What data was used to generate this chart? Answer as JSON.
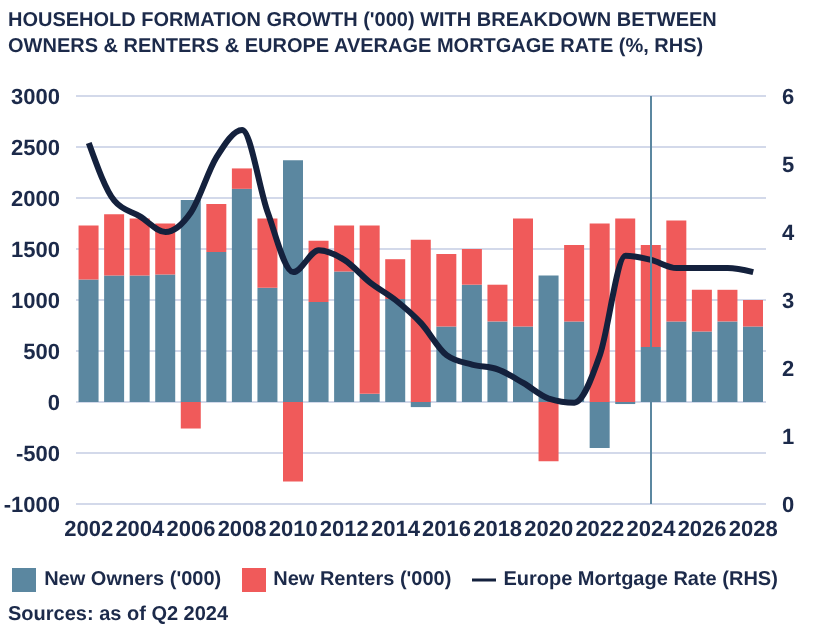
{
  "chart_data": {
    "type": "bar",
    "title": "HOUSEHOLD FORMATION GROWTH ('000) WITH BREAKDOWN BETWEEN OWNERS & RENTERS & EUROPE AVERAGE MORTGAGE RATE (%, RHS)",
    "categories": [
      "2002",
      null,
      "2004",
      null,
      "2006",
      null,
      "2008",
      null,
      "2010",
      null,
      "2012",
      null,
      "2014",
      null,
      "2016",
      null,
      "2018",
      null,
      "2020",
      null,
      "2022",
      null,
      "2024",
      null,
      "2026",
      null,
      "2028"
    ],
    "stacked": true,
    "series": [
      {
        "name": "New Owners ('000)",
        "color": "#5b87a0",
        "values": [
          1200,
          1240,
          1240,
          1250,
          1980,
          1470,
          2090,
          1120,
          2370,
          980,
          1280,
          80,
          1010,
          -50,
          740,
          1150,
          790,
          740,
          1240,
          790,
          -450,
          -20,
          540,
          790,
          690,
          790,
          740
        ]
      },
      {
        "name": "New Renters ('000)",
        "color": "#f05a5a",
        "values": [
          530,
          600,
          560,
          500,
          -260,
          470,
          200,
          680,
          -780,
          600,
          450,
          1650,
          390,
          1590,
          710,
          350,
          360,
          1060,
          -580,
          750,
          1750,
          1800,
          1000,
          990,
          410,
          310,
          260
        ]
      },
      {
        "name": "Europe Mortgage Rate (RHS)",
        "type": "line",
        "axis": "y2",
        "color": "#14213d",
        "values": [
          5.31,
          4.46,
          4.23,
          4.0,
          4.29,
          5.1,
          5.5,
          4.29,
          3.41,
          3.73,
          3.59,
          3.26,
          3.0,
          2.66,
          2.19,
          2.05,
          1.98,
          1.78,
          1.55,
          1.49,
          2.19,
          3.65,
          3.59,
          3.47,
          3.47,
          3.47,
          3.41
        ]
      }
    ],
    "ylim": [
      -1000,
      3000
    ],
    "yticks": [
      -1000,
      -500,
      0,
      500,
      1000,
      1500,
      2000,
      2500,
      3000
    ],
    "y2lim": [
      0,
      6
    ],
    "y2ticks": [
      0,
      1,
      2,
      3,
      4,
      5,
      6
    ],
    "ref_lines": [
      {
        "axis": "x",
        "value": "2024",
        "color": "#5b87a0"
      }
    ],
    "grid": "y",
    "legend": "bottom",
    "marker": "none",
    "annotations": [
      "Sources: as of Q2 2024"
    ]
  }
}
